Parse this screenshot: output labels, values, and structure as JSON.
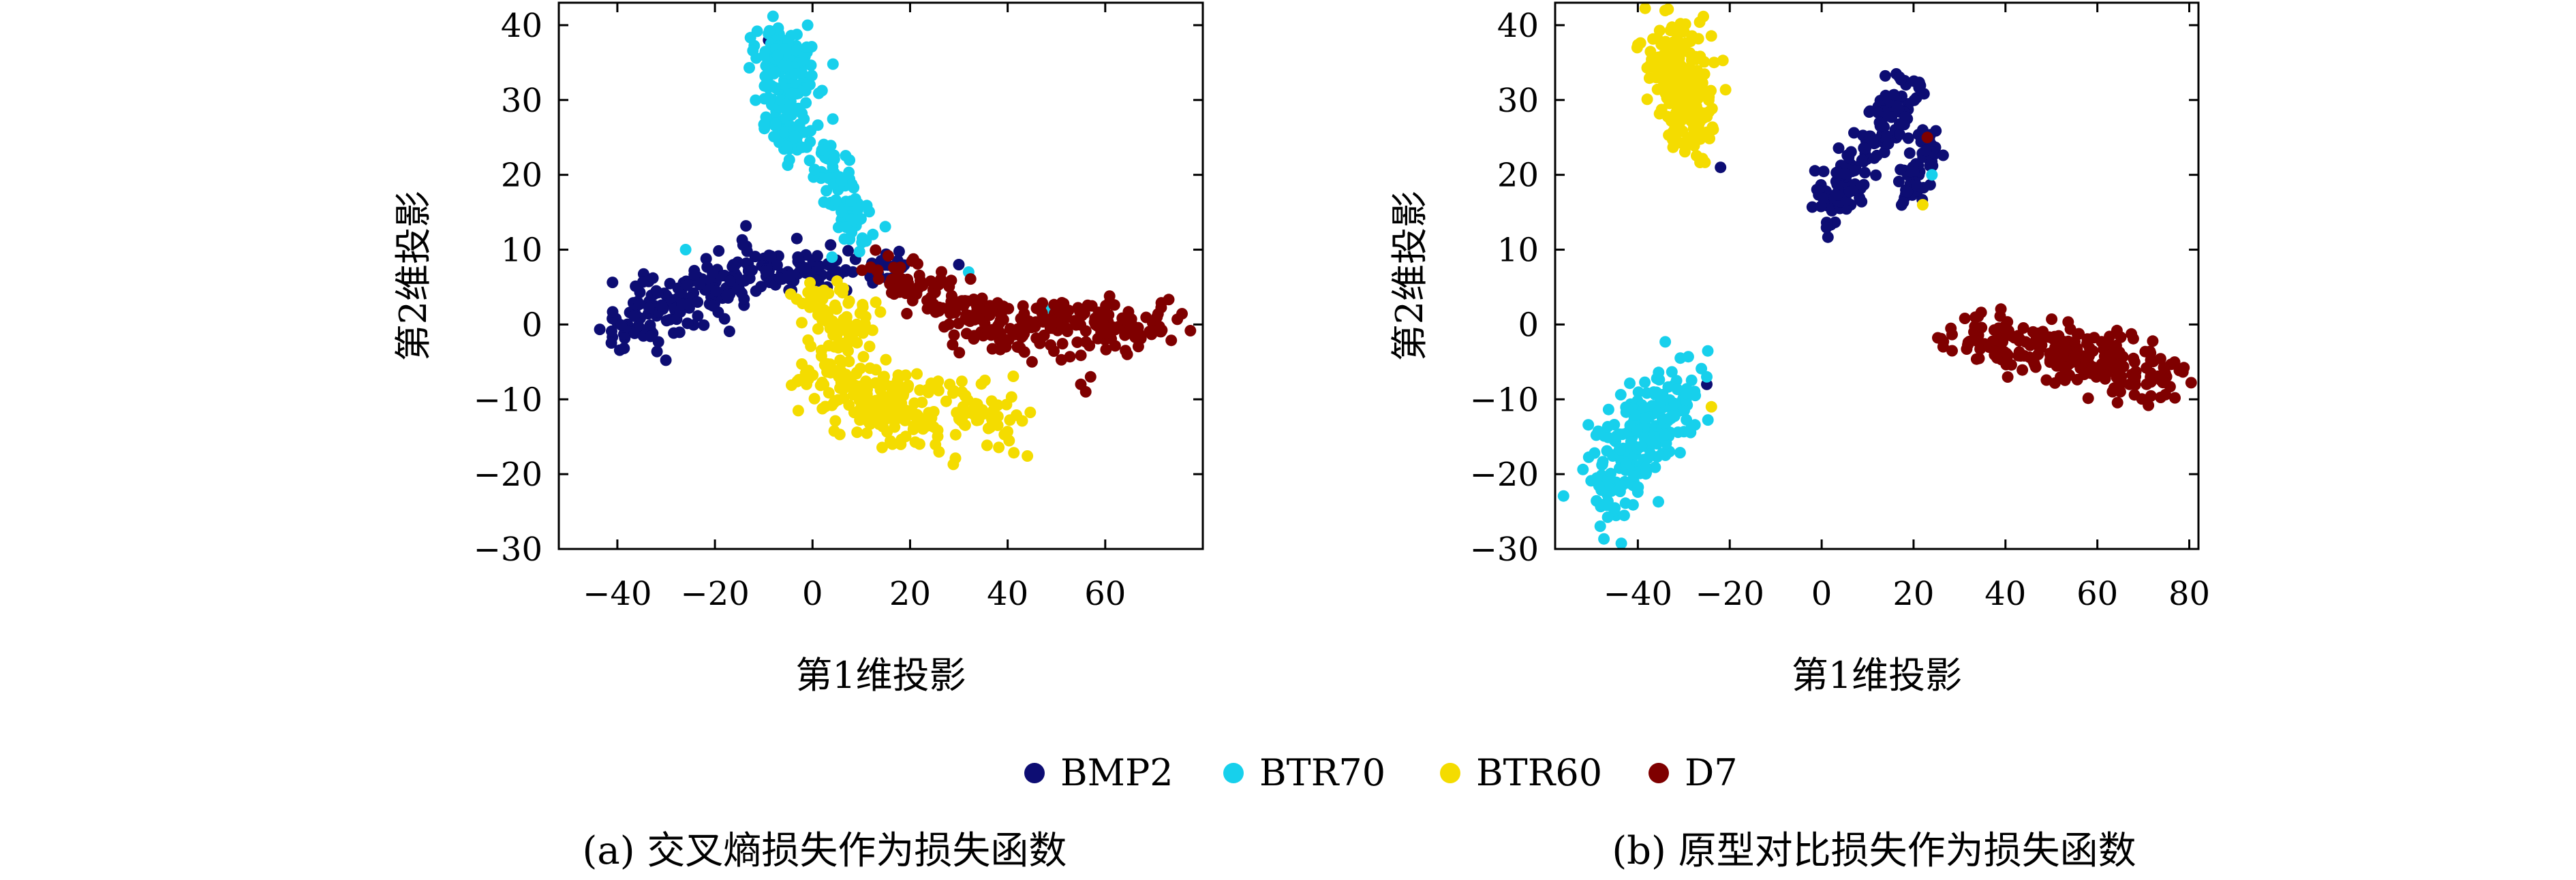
{
  "legend": [
    {
      "name": "BMP2",
      "color": "#0d0d73"
    },
    {
      "name": "BTR70",
      "color": "#17d0ec"
    },
    {
      "name": "BTR60",
      "color": "#f4dc00"
    },
    {
      "name": "D7",
      "color": "#7f0000"
    }
  ],
  "chart_data": [
    {
      "type": "scatter",
      "caption": "(a) 交叉熵损失作为损失函数",
      "xlabel": "第1维投影",
      "ylabel": "第2维投影",
      "xlim": [
        -52,
        80
      ],
      "ylim": [
        -30,
        43
      ],
      "xticks": [
        -40,
        -20,
        0,
        20,
        40,
        60
      ],
      "yticks": [
        -30,
        -20,
        -10,
        0,
        10,
        20,
        30,
        40
      ],
      "grid": false,
      "series": [
        {
          "name": "BMP2",
          "color": "#0d0d73",
          "clusters": [
            {
              "count": 170,
              "from": [
                -43,
                -1
              ],
              "to": [
                -10,
                8
              ],
              "spread": [
                3.0,
                2.3
              ]
            },
            {
              "count": 80,
              "from": [
                -12,
                7
              ],
              "to": [
                18,
                8
              ],
              "spread": [
                3.2,
                1.4
              ]
            }
          ],
          "points": [
            [
              -9,
              38
            ],
            [
              -9,
              34
            ],
            [
              -9,
              32
            ],
            [
              -8,
              36
            ],
            [
              3,
              5
            ],
            [
              30,
              8
            ],
            [
              -3,
              9
            ]
          ]
        },
        {
          "name": "BTR70",
          "color": "#17d0ec",
          "clusters": [
            {
              "count": 110,
              "from": [
                -9,
                37
              ],
              "to": [
                -2,
                33
              ],
              "spread": [
                2.6,
                2.2
              ]
            },
            {
              "count": 70,
              "from": [
                -8,
                30
              ],
              "to": [
                -4,
                24
              ],
              "spread": [
                2.2,
                1.6
              ]
            },
            {
              "count": 80,
              "from": [
                1,
                24
              ],
              "to": [
                10,
                12
              ],
              "spread": [
                1.8,
                1.8
              ]
            }
          ],
          "points": [
            [
              -1,
              40
            ],
            [
              -26,
              10
            ],
            [
              32,
              7
            ],
            [
              35,
              1
            ],
            [
              48,
              2
            ],
            [
              4,
              9
            ]
          ]
        },
        {
          "name": "BTR60",
          "color": "#f4dc00",
          "clusters": [
            {
              "count": 70,
              "from": [
                -1,
                4
              ],
              "to": [
                12,
                -2
              ],
              "spread": [
                3.0,
                2.0
              ]
            },
            {
              "count": 140,
              "from": [
                2,
                -6
              ],
              "to": [
                18,
                -13
              ],
              "spread": [
                3.8,
                2.6
              ]
            },
            {
              "count": 100,
              "from": [
                18,
                -12
              ],
              "to": [
                40,
                -12
              ],
              "spread": [
                4.0,
                2.6
              ]
            }
          ],
          "points": []
        },
        {
          "name": "D7",
          "color": "#7f0000",
          "clusters": [
            {
              "count": 90,
              "from": [
                15,
                7
              ],
              "to": [
                35,
                1
              ],
              "spread": [
                3.0,
                1.6
              ]
            },
            {
              "count": 180,
              "from": [
                32,
                0
              ],
              "to": [
                72,
                0
              ],
              "spread": [
                4.5,
                1.8
              ]
            }
          ],
          "points": [
            [
              55,
              -8
            ],
            [
              57,
              -7
            ],
            [
              56,
              -9
            ],
            [
              42,
              -3
            ],
            [
              45,
              -5
            ]
          ]
        }
      ]
    },
    {
      "type": "scatter",
      "caption": "(b) 原型对比损失作为损失函数",
      "xlabel": "第1维投影",
      "ylabel": "第2维投影",
      "xlim": [
        -58,
        82
      ],
      "ylim": [
        -30,
        43
      ],
      "xticks": [
        -40,
        -20,
        0,
        20,
        40,
        60,
        80
      ],
      "yticks": [
        -30,
        -20,
        -10,
        0,
        10,
        20,
        30,
        40
      ],
      "grid": false,
      "series": [
        {
          "name": "BMP2",
          "color": "#0d0d73",
          "clusters": [
            {
              "count": 150,
              "from": [
                0,
                15
              ],
              "to": [
                19,
                31
              ],
              "spread": [
                2.0,
                2.0
              ]
            },
            {
              "count": 60,
              "from": [
                18,
                18
              ],
              "to": [
                24,
                24
              ],
              "spread": [
                1.6,
                1.8
              ]
            }
          ],
          "points": [
            [
              -22,
              21
            ],
            [
              -25,
              -8
            ],
            [
              22,
              26
            ]
          ]
        },
        {
          "name": "BTR70",
          "color": "#17d0ec",
          "clusters": [
            {
              "count": 220,
              "from": [
                -48,
                -22
              ],
              "to": [
                -30,
                -9
              ],
              "spread": [
                3.0,
                3.5
              ]
            }
          ],
          "points": [
            [
              24,
              20
            ],
            [
              -25,
              -7
            ]
          ]
        },
        {
          "name": "BTR60",
          "color": "#f4dc00",
          "clusters": [
            {
              "count": 240,
              "from": [
                -33,
                37
              ],
              "to": [
                -27,
                25
              ],
              "spread": [
                3.0,
                3.0
              ]
            }
          ],
          "points": [
            [
              22,
              16
            ],
            [
              -24,
              -11
            ],
            [
              -26,
              22
            ]
          ]
        },
        {
          "name": "D7",
          "color": "#7f0000",
          "clusters": [
            {
              "count": 240,
              "from": [
                31,
                -1
              ],
              "to": [
                74,
                -7
              ],
              "spread": [
                4.5,
                1.8
              ]
            }
          ],
          "points": [
            [
              23,
              25
            ]
          ]
        }
      ]
    }
  ]
}
